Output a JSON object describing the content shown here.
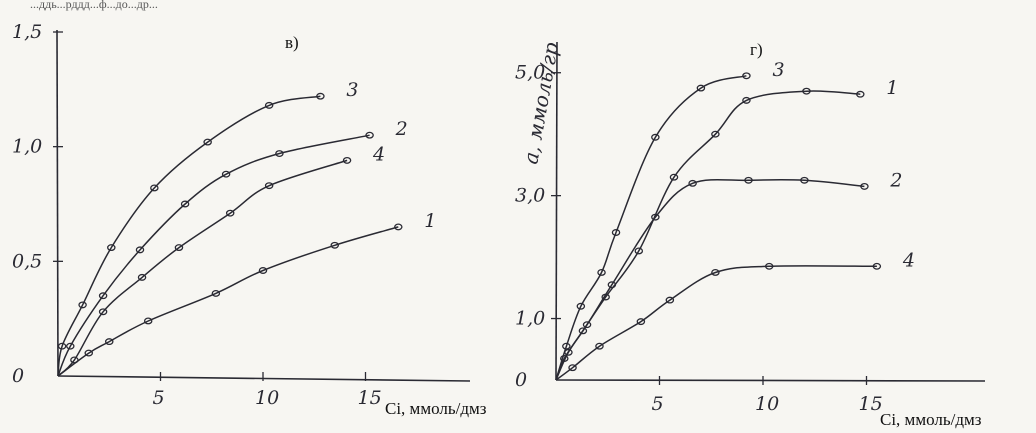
{
  "chart_data": [
    {
      "type": "line",
      "title": "в)",
      "xlabel": "Ci, ммоль/дмз",
      "ylabel": "",
      "xlim": [
        0,
        20
      ],
      "ylim": [
        0,
        1.5
      ],
      "x_ticks": [
        {
          "v": 5,
          "label": "5"
        },
        {
          "v": 10,
          "label": "10"
        },
        {
          "v": 15,
          "label": "15"
        }
      ],
      "y_ticks": [
        {
          "v": 0,
          "label": "0"
        },
        {
          "v": 0.5,
          "label": "0,5"
        },
        {
          "v": 1.0,
          "label": "1,0"
        },
        {
          "v": 1.5,
          "label": "1,5"
        }
      ],
      "series": [
        {
          "name": "3",
          "x": [
            0.2,
            1.2,
            2.6,
            4.7,
            7.3,
            10.3,
            12.8
          ],
          "y": [
            0.13,
            0.31,
            0.56,
            0.82,
            1.02,
            1.18,
            1.22
          ]
        },
        {
          "name": "2",
          "x": [
            0.6,
            2.2,
            4.0,
            6.2,
            8.2,
            10.8,
            15.2
          ],
          "y": [
            0.13,
            0.35,
            0.55,
            0.75,
            0.88,
            0.97,
            1.05
          ]
        },
        {
          "name": "4",
          "x": [
            0.8,
            2.2,
            4.1,
            5.9,
            8.4,
            10.3,
            14.1
          ],
          "y": [
            0.07,
            0.28,
            0.43,
            0.56,
            0.71,
            0.83,
            0.94
          ]
        },
        {
          "name": "1",
          "x": [
            1.5,
            2.5,
            4.4,
            7.7,
            10.0,
            13.5,
            16.6
          ],
          "y": [
            0.1,
            0.15,
            0.24,
            0.36,
            0.46,
            0.57,
            0.65
          ]
        }
      ]
    },
    {
      "type": "line",
      "title": "г)",
      "xlabel": "Ci, ммоль/дмз",
      "ylabel": "a, ммоль/гр",
      "xlim": [
        0,
        20
      ],
      "ylim": [
        0,
        5.5
      ],
      "x_ticks": [
        {
          "v": 5,
          "label": "5"
        },
        {
          "v": 10,
          "label": "10"
        },
        {
          "v": 15,
          "label": "15"
        }
      ],
      "y_ticks": [
        {
          "v": 0,
          "label": "0"
        },
        {
          "v": 1.0,
          "label": "1,0"
        },
        {
          "v": 3.0,
          "label": "3,0"
        },
        {
          "v": 5.0,
          "label": "5,0"
        }
      ],
      "series": [
        {
          "name": "3",
          "x": [
            0.5,
            1.2,
            2.2,
            2.9,
            4.8,
            7.0,
            9.2
          ],
          "y": [
            0.55,
            1.2,
            1.75,
            2.4,
            3.95,
            4.75,
            4.95
          ]
        },
        {
          "name": "1",
          "x": [
            0.4,
            1.3,
            2.4,
            4.0,
            5.7,
            7.7,
            9.2,
            12.1,
            14.7
          ],
          "y": [
            0.35,
            0.8,
            1.35,
            2.1,
            3.3,
            4.0,
            4.55,
            4.7,
            4.65
          ]
        },
        {
          "name": "2",
          "x": [
            0.6,
            1.5,
            2.7,
            4.8,
            6.6,
            9.3,
            12.0,
            14.9
          ],
          "y": [
            0.45,
            0.9,
            1.55,
            2.65,
            3.2,
            3.25,
            3.25,
            3.15
          ]
        },
        {
          "name": "4",
          "x": [
            0.8,
            2.1,
            4.1,
            5.5,
            7.7,
            10.3,
            15.5
          ],
          "y": [
            0.2,
            0.55,
            0.95,
            1.3,
            1.75,
            1.85,
            1.85
          ]
        }
      ]
    }
  ],
  "page_text": {
    "fragment": "...ддь...рддд...ф...до...др..."
  }
}
